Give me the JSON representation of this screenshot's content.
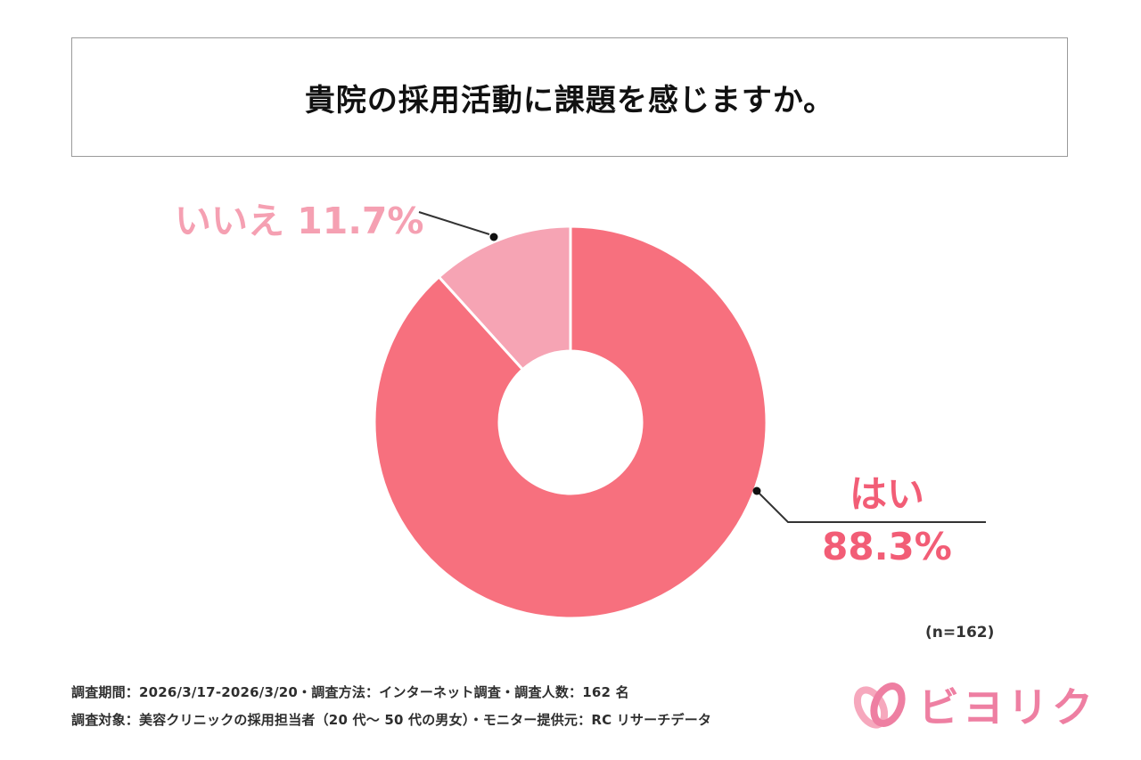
{
  "title": "貴院の採用活動に課題を感じますか。",
  "chart_data": {
    "type": "pie",
    "donut": true,
    "title": "貴院の採用活動に課題を感じますか。",
    "unit": "%",
    "start_angle": "top",
    "direction": "clockwise",
    "sample_size_note": "(n=162)",
    "sample_size": 162,
    "slices": [
      {
        "key": "yes",
        "label": "はい",
        "value": 88.3,
        "color": "#f7707e"
      },
      {
        "key": "no",
        "label": "いいえ",
        "value": 11.7,
        "color": "#f6a4b4"
      }
    ]
  },
  "callouts": {
    "no": "いいえ 11.7%",
    "yes_label": "はい",
    "yes_value": "88.3%",
    "n_note": "(n=162)"
  },
  "footer": {
    "line1": "調査期間：2026/3/17-2026/3/20・調査方法：インターネット調査・調査人数：162 名",
    "line2": "調査対象：美容クリニックの採用担当者（20 代～ 50 代の男女）・モニター提供元：RC リサーチデータ"
  },
  "logo": {
    "text": "ビヨリク"
  },
  "colors": {
    "slice_yes": "#f7707e",
    "slice_no": "#f6a4b4",
    "label_yes": "#f25d76",
    "label_no": "#f5a0b2",
    "logo_pink": "#ee7fa2",
    "leader_line": "#333333"
  }
}
